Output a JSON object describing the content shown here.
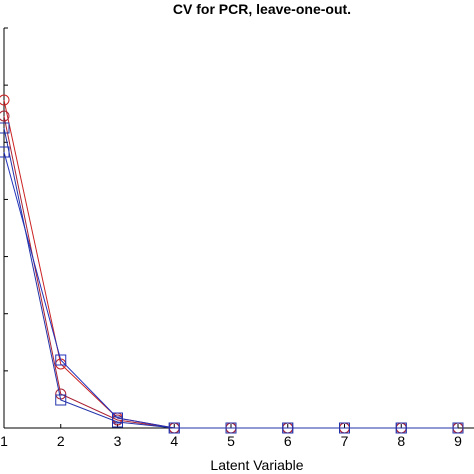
{
  "chart_data": {
    "type": "line",
    "title": "CV for PCR, leave-one-out.",
    "xlabel": "Latent Variable",
    "ylabel": "",
    "x": [
      1,
      2,
      3,
      4,
      5,
      6,
      7,
      8,
      9
    ],
    "xticks": [
      "1",
      "2",
      "3",
      "4",
      "5",
      "6",
      "7",
      "8",
      "9"
    ],
    "xlim": [
      1,
      9
    ],
    "ylim": [
      0,
      1
    ],
    "grid": false,
    "series": [
      {
        "color": "#cc2222",
        "marker": "circle",
        "values": [
          0.82,
          0.16,
          0.025,
          0.0,
          0.0,
          0.0,
          0.0,
          0.0,
          0.0
        ]
      },
      {
        "color": "#aa2233",
        "marker": "circle",
        "values": [
          0.78,
          0.085,
          0.02,
          0.0,
          0.0,
          0.0,
          0.0,
          0.0,
          0.0
        ]
      },
      {
        "color": "#2233bb",
        "marker": "square",
        "values": [
          0.69,
          0.17,
          0.025,
          0.0,
          0.0,
          0.0,
          0.0,
          0.0,
          0.0
        ]
      },
      {
        "color": "#2233aa",
        "marker": "square",
        "values": [
          0.75,
          0.07,
          0.015,
          0.0,
          0.0,
          0.0,
          0.0,
          0.0,
          0.0
        ]
      }
    ]
  }
}
